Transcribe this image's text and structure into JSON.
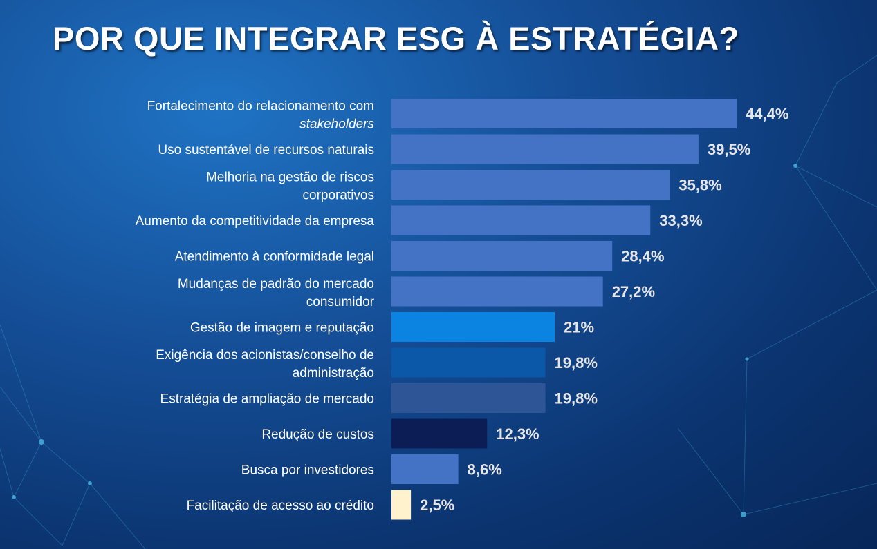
{
  "title": "POR QUE INTEGRAR ESG À ESTRATÉGIA?",
  "chart_data": {
    "type": "bar",
    "orientation": "horizontal",
    "xlabel": "",
    "ylabel": "",
    "xlim": [
      0,
      50
    ],
    "grid": false,
    "legend": "none",
    "categories": [
      "Fortalecimento do relacionamento com stakeholders",
      "Uso sustentável de recursos naturais",
      "Melhoria na gestão de riscos corporativos",
      "Aumento da competitividade da empresa",
      "Atendimento à conformidade legal",
      "Mudanças de padrão do mercado consumidor",
      "Gestão de imagem e reputação",
      "Exigência dos acionistas/conselho de administração",
      "Estratégia de ampliação de mercado",
      "Redução de custos",
      "Busca por investidores",
      "Facilitação de acesso ao crédito"
    ],
    "category_lines": [
      [
        [
          "Fortalecimento do relacionamento com",
          false
        ]
      ],
      [
        [
          "Uso sustentável de recursos naturais",
          false
        ]
      ],
      [
        [
          "Melhoria na gestão de riscos",
          false
        ]
      ],
      [
        [
          "Aumento da competitividade da empresa",
          false
        ]
      ],
      [
        [
          "Atendimento à conformidade legal",
          false
        ]
      ],
      [
        [
          "Mudanças de padrão do mercado",
          false
        ]
      ],
      [
        [
          "Gestão de imagem e reputação",
          false
        ]
      ],
      [
        [
          "Exigência dos acionistas/conselho de",
          false
        ]
      ],
      [
        [
          "Estratégia de ampliação de mercado",
          false
        ]
      ],
      [
        [
          "Redução de custos",
          false
        ]
      ],
      [
        [
          "Busca por investidores",
          false
        ]
      ],
      [
        [
          "Facilitação de acesso ao crédito",
          false
        ]
      ]
    ],
    "category_second_lines": [
      "stakeholders",
      "",
      "corporativos",
      "",
      "",
      "consumidor",
      "",
      "administração",
      "",
      "",
      "",
      ""
    ],
    "category_second_line_italic": [
      true,
      false,
      false,
      false,
      false,
      false,
      false,
      false,
      false,
      false,
      false,
      false
    ],
    "values": [
      44.4,
      39.5,
      35.8,
      33.3,
      28.4,
      27.2,
      21,
      19.8,
      19.8,
      12.3,
      8.6,
      2.5
    ],
    "value_labels": [
      "44,4%",
      "39,5%",
      "35,8%",
      "33,3%",
      "28,4%",
      "27,2%",
      "21%",
      "19,8%",
      "19,8%",
      "12,3%",
      "8,6%",
      "2,5%"
    ],
    "colors": [
      "#4472c4",
      "#4472c4",
      "#4472c4",
      "#4472c4",
      "#4472c4",
      "#4472c4",
      "#0a84e0",
      "#0b57a8",
      "#2e5596",
      "#0b1d54",
      "#4472c4",
      "#fff2cc"
    ]
  }
}
